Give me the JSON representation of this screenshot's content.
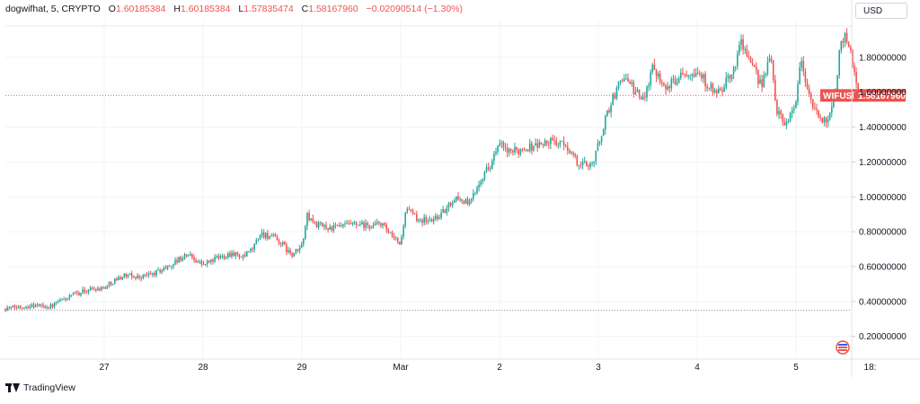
{
  "legend": {
    "symbol": "dogwifhat, 5, CRYPTO",
    "open_label": "O",
    "open": "1.60185384",
    "high_label": "H",
    "high": "1.60185384",
    "low_label": "L",
    "low": "1.57835474",
    "close_label": "C",
    "close": "1.58167960",
    "change": "−0.02090514 (−1.30%)"
  },
  "currency_button": "USD",
  "footer": {
    "brand": "TradingView"
  },
  "colors": {
    "up": "#26a69a",
    "down": "#ef5350",
    "price_line": "#ef5350"
  },
  "price_badge": {
    "ticker": "WIFUSD",
    "price": "1.58167960"
  },
  "chart_data": {
    "type": "candlestick",
    "title": "dogwifhat, 5, CRYPTO",
    "ylim": [
      0.08,
      2.0
    ],
    "grid": true,
    "y_ticks": [
      {
        "value": 0.2,
        "label": "0.20000000"
      },
      {
        "value": 0.4,
        "label": "0.40000000"
      },
      {
        "value": 0.6,
        "label": "0.60000000"
      },
      {
        "value": 0.8,
        "label": "0.80000000"
      },
      {
        "value": 1.0,
        "label": "1.00000000"
      },
      {
        "value": 1.2,
        "label": "1.20000000"
      },
      {
        "value": 1.4,
        "label": "1.40000000"
      },
      {
        "value": 1.6,
        "label": "1.60000000"
      },
      {
        "value": 1.8,
        "label": "1.80000000"
      }
    ],
    "x_ticks": [
      {
        "day": 1.0,
        "label": "27"
      },
      {
        "day": 2.0,
        "label": "28"
      },
      {
        "day": 3.0,
        "label": "29"
      },
      {
        "day": 4.0,
        "label": "Mar"
      },
      {
        "day": 5.0,
        "label": "2"
      },
      {
        "day": 6.0,
        "label": "3"
      },
      {
        "day": 7.0,
        "label": "4"
      },
      {
        "day": 8.0,
        "label": "5"
      },
      {
        "day": 8.75,
        "label": "18:"
      }
    ],
    "last_price": 1.5816796,
    "dotted_level": 0.35,
    "series": [
      {
        "day": 0.0,
        "close": 0.36
      },
      {
        "day": 0.15,
        "close": 0.37
      },
      {
        "day": 0.3,
        "close": 0.38
      },
      {
        "day": 0.45,
        "close": 0.37
      },
      {
        "day": 0.55,
        "close": 0.4
      },
      {
        "day": 0.7,
        "close": 0.44
      },
      {
        "day": 0.85,
        "close": 0.47
      },
      {
        "day": 1.0,
        "close": 0.48
      },
      {
        "day": 1.1,
        "close": 0.52
      },
      {
        "day": 1.2,
        "close": 0.55
      },
      {
        "day": 1.35,
        "close": 0.54
      },
      {
        "day": 1.5,
        "close": 0.56
      },
      {
        "day": 1.65,
        "close": 0.6
      },
      {
        "day": 1.75,
        "close": 0.64
      },
      {
        "day": 1.85,
        "close": 0.67
      },
      {
        "day": 2.0,
        "close": 0.61
      },
      {
        "day": 2.1,
        "close": 0.64
      },
      {
        "day": 2.2,
        "close": 0.66
      },
      {
        "day": 2.3,
        "close": 0.68
      },
      {
        "day": 2.4,
        "close": 0.65
      },
      {
        "day": 2.5,
        "close": 0.7
      },
      {
        "day": 2.58,
        "close": 0.79
      },
      {
        "day": 2.7,
        "close": 0.77
      },
      {
        "day": 2.8,
        "close": 0.73
      },
      {
        "day": 2.9,
        "close": 0.66
      },
      {
        "day": 3.0,
        "close": 0.72
      },
      {
        "day": 3.05,
        "close": 0.89
      },
      {
        "day": 3.15,
        "close": 0.84
      },
      {
        "day": 3.3,
        "close": 0.82
      },
      {
        "day": 3.5,
        "close": 0.84
      },
      {
        "day": 3.7,
        "close": 0.83
      },
      {
        "day": 3.8,
        "close": 0.85
      },
      {
        "day": 3.92,
        "close": 0.76
      },
      {
        "day": 4.0,
        "close": 0.73
      },
      {
        "day": 4.05,
        "close": 0.93
      },
      {
        "day": 4.15,
        "close": 0.88
      },
      {
        "day": 4.3,
        "close": 0.86
      },
      {
        "day": 4.45,
        "close": 0.92
      },
      {
        "day": 4.55,
        "close": 1.0
      },
      {
        "day": 4.7,
        "close": 0.96
      },
      {
        "day": 4.8,
        "close": 1.1
      },
      {
        "day": 4.9,
        "close": 1.18
      },
      {
        "day": 5.0,
        "close": 1.3
      },
      {
        "day": 5.1,
        "close": 1.25
      },
      {
        "day": 5.25,
        "close": 1.28
      },
      {
        "day": 5.4,
        "close": 1.3
      },
      {
        "day": 5.55,
        "close": 1.32
      },
      {
        "day": 5.7,
        "close": 1.28
      },
      {
        "day": 5.8,
        "close": 1.18
      },
      {
        "day": 5.95,
        "close": 1.2
      },
      {
        "day": 6.0,
        "close": 1.3
      },
      {
        "day": 6.1,
        "close": 1.5
      },
      {
        "day": 6.25,
        "close": 1.7
      },
      {
        "day": 6.35,
        "close": 1.62
      },
      {
        "day": 6.45,
        "close": 1.55
      },
      {
        "day": 6.55,
        "close": 1.75
      },
      {
        "day": 6.7,
        "close": 1.62
      },
      {
        "day": 6.85,
        "close": 1.72
      },
      {
        "day": 7.0,
        "close": 1.72
      },
      {
        "day": 7.1,
        "close": 1.65
      },
      {
        "day": 7.2,
        "close": 1.58
      },
      {
        "day": 7.35,
        "close": 1.7
      },
      {
        "day": 7.45,
        "close": 1.9
      },
      {
        "day": 7.55,
        "close": 1.74
      },
      {
        "day": 7.65,
        "close": 1.65
      },
      {
        "day": 7.75,
        "close": 1.8
      },
      {
        "day": 7.8,
        "close": 1.5
      },
      {
        "day": 7.9,
        "close": 1.42
      },
      {
        "day": 8.0,
        "close": 1.55
      },
      {
        "day": 8.05,
        "close": 1.8
      },
      {
        "day": 8.12,
        "close": 1.6
      },
      {
        "day": 8.2,
        "close": 1.48
      },
      {
        "day": 8.3,
        "close": 1.42
      },
      {
        "day": 8.4,
        "close": 1.6
      },
      {
        "day": 8.45,
        "close": 1.88
      },
      {
        "day": 8.5,
        "close": 1.94
      },
      {
        "day": 8.58,
        "close": 1.75
      },
      {
        "day": 8.64,
        "close": 1.58
      }
    ]
  }
}
